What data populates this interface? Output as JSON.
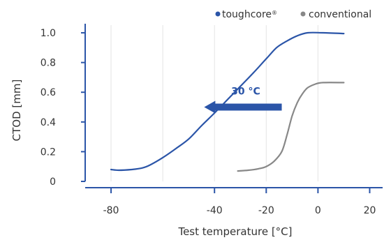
{
  "chart_data": {
    "type": "line",
    "xlabel": "Test temperature [°C]",
    "ylabel": "CTOD [mm]",
    "xlim": [
      -90,
      25
    ],
    "ylim": [
      0,
      1.08
    ],
    "x_ticks": [
      -80,
      -40,
      -20,
      0,
      20
    ],
    "x_tick_labels": [
      "-80",
      "-40",
      "-20",
      "0",
      "20"
    ],
    "x_gridlines": [
      -80,
      -60,
      -40,
      -20,
      0
    ],
    "y_ticks": [
      0,
      0.2,
      0.4,
      0.6,
      0.8,
      1.0
    ],
    "y_tick_labels": [
      "0",
      "0.2",
      "0.4",
      "0.6",
      "0.8",
      "1.0"
    ],
    "grid": "vertical",
    "legend": {
      "placement": "top-right",
      "entries": [
        {
          "label": "toughcore",
          "mark": "®",
          "color": "#2b55a8"
        },
        {
          "label": "conventional",
          "color": "#888888"
        }
      ]
    },
    "series": [
      {
        "label": "toughcore",
        "color": "#2b55a8",
        "points": [
          [
            -80,
            0.08
          ],
          [
            -77,
            0.075
          ],
          [
            -72,
            0.08
          ],
          [
            -68,
            0.09
          ],
          [
            -65,
            0.11
          ],
          [
            -60,
            0.16
          ],
          [
            -55,
            0.22
          ],
          [
            -50,
            0.285
          ],
          [
            -45,
            0.375
          ],
          [
            -40,
            0.46
          ],
          [
            -35,
            0.55
          ],
          [
            -30,
            0.64
          ],
          [
            -25,
            0.73
          ],
          [
            -20,
            0.825
          ],
          [
            -16,
            0.9
          ],
          [
            -12,
            0.945
          ],
          [
            -8,
            0.98
          ],
          [
            -4,
            1.0
          ],
          [
            2,
            1.0
          ],
          [
            10,
            0.995
          ]
        ]
      },
      {
        "label": "conventional",
        "color": "#888888",
        "points": [
          [
            -31,
            0.07
          ],
          [
            -27,
            0.075
          ],
          [
            -23,
            0.085
          ],
          [
            -20,
            0.1
          ],
          [
            -17,
            0.135
          ],
          [
            -14,
            0.2
          ],
          [
            -12,
            0.31
          ],
          [
            -10,
            0.44
          ],
          [
            -8,
            0.53
          ],
          [
            -6,
            0.59
          ],
          [
            -4,
            0.63
          ],
          [
            -1,
            0.655
          ],
          [
            2,
            0.665
          ],
          [
            10,
            0.665
          ]
        ]
      }
    ],
    "annotation": {
      "text": "30 °C",
      "color": "#2b55a8",
      "arrow_direction": "left",
      "arrow_from": [
        -14,
        0.5
      ],
      "arrow_to": [
        -44,
        0.5
      ]
    }
  }
}
